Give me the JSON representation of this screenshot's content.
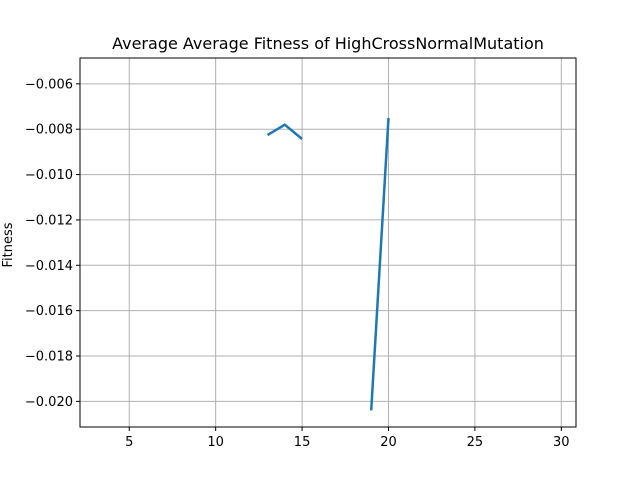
{
  "chart_data": {
    "type": "line",
    "title": "Average Average Fitness of HighCrossNormalMutation",
    "xlabel": "",
    "ylabel": "Fitness",
    "xlim": [
      2.15,
      30.85
    ],
    "ylim": [
      -0.02113,
      -0.00486
    ],
    "xticks": [
      5,
      10,
      15,
      20,
      25,
      30
    ],
    "xtick_labels": [
      "5",
      "10",
      "15",
      "20",
      "25",
      "30"
    ],
    "yticks": [
      -0.02,
      -0.018,
      -0.016,
      -0.014,
      -0.012,
      -0.01,
      -0.008,
      -0.006
    ],
    "ytick_labels": [
      "−0.020",
      "−0.018",
      "−0.016",
      "−0.014",
      "−0.012",
      "−0.010",
      "−0.008",
      "−0.006"
    ],
    "grid": true,
    "series": [
      {
        "color": "#1f77b4",
        "segments": [
          {
            "x": [
              13,
              14,
              15
            ],
            "y": [
              -0.00826,
              -0.0078,
              -0.00843
            ]
          },
          {
            "x": [
              19,
              20
            ],
            "y": [
              -0.0204,
              -0.0075
            ]
          }
        ]
      }
    ]
  }
}
